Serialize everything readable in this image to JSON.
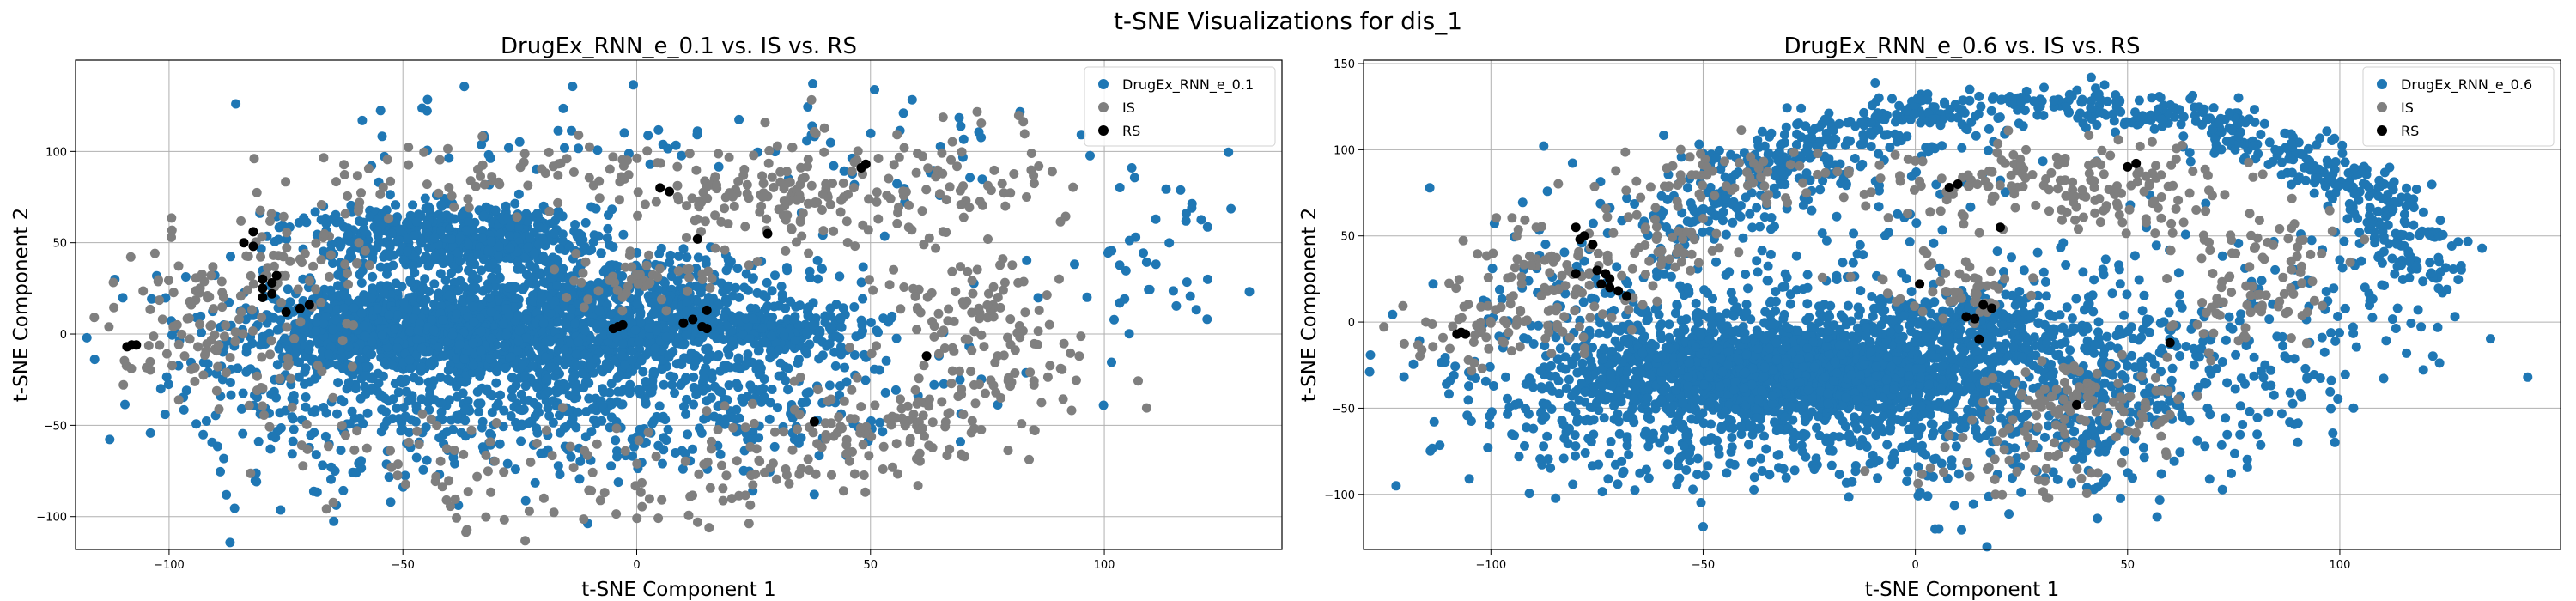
{
  "figure": {
    "suptitle": "t-SNE Visualizations for dis_1"
  },
  "chart_data": [
    {
      "type": "scatter",
      "title": "DrugEx_RNN_e_0.1 vs. IS vs. RS",
      "xlabel": "t-SNE Component 1",
      "ylabel": "t-SNE Component 2",
      "xlim": [
        -120,
        138
      ],
      "ylim": [
        -118,
        150
      ],
      "xticks": [
        -100,
        -50,
        0,
        50,
        100
      ],
      "yticks": [
        -100,
        -50,
        0,
        50,
        100
      ],
      "grid": true,
      "legend_position": "top-right",
      "series": [
        {
          "name": "DrugEx_RNN_e_0.1",
          "color": "#1f77b4",
          "clusters": [
            {
              "cx": -22,
              "cy": 5,
              "sx": 30,
              "sy": 16,
              "n": 1600
            },
            {
              "cx": -55,
              "cy": 2,
              "sx": 12,
              "sy": 10,
              "n": 450
            },
            {
              "cx": -45,
              "cy": 55,
              "sx": 15,
              "sy": 9,
              "n": 320
            },
            {
              "cx": -30,
              "cy": 50,
              "sx": 12,
              "sy": 8,
              "n": 250
            },
            {
              "cx": -25,
              "cy": -35,
              "sx": 35,
              "sy": 20,
              "n": 500
            },
            {
              "cx": 30,
              "cy": 3,
              "sx": 8,
              "sy": 4,
              "n": 120
            },
            {
              "cx": 10,
              "cy": 15,
              "sx": 20,
              "sy": 18,
              "n": 150
            },
            {
              "cx": 20,
              "cy": -40,
              "sx": 25,
              "sy": 20,
              "n": 160
            },
            {
              "cx": 110,
              "cy": 40,
              "sx": 12,
              "sy": 25,
              "n": 45
            },
            {
              "cx": 55,
              "cy": 100,
              "sx": 20,
              "sy": 15,
              "n": 40
            },
            {
              "cx": -20,
              "cy": 110,
              "sx": 25,
              "sy": 12,
              "n": 40
            },
            {
              "cx": -70,
              "cy": -60,
              "sx": 20,
              "sy": 25,
              "n": 60
            }
          ]
        },
        {
          "name": "IS",
          "color": "#7f7f7f",
          "clusters": [
            {
              "cx": 30,
              "cy": 75,
              "sx": 15,
              "sy": 15,
              "n": 130
            },
            {
              "cx": 60,
              "cy": 80,
              "sx": 15,
              "sy": 18,
              "n": 90
            },
            {
              "cx": 70,
              "cy": 15,
              "sx": 10,
              "sy": 15,
              "n": 80
            },
            {
              "cx": 55,
              "cy": -50,
              "sx": 12,
              "sy": 15,
              "n": 110
            },
            {
              "cx": 20,
              "cy": -70,
              "sx": 15,
              "sy": 12,
              "n": 60
            },
            {
              "cx": 85,
              "cy": -20,
              "sx": 10,
              "sy": 15,
              "n": 40
            },
            {
              "cx": -88,
              "cy": -10,
              "sx": 12,
              "sy": 20,
              "n": 90
            },
            {
              "cx": -75,
              "cy": 45,
              "sx": 10,
              "sy": 20,
              "n": 60
            },
            {
              "cx": -30,
              "cy": 85,
              "sx": 20,
              "sy": 10,
              "n": 70
            },
            {
              "cx": 0,
              "cy": 30,
              "sx": 10,
              "sy": 8,
              "n": 50
            },
            {
              "cx": -40,
              "cy": -70,
              "sx": 20,
              "sy": 15,
              "n": 50
            },
            {
              "cx": -10,
              "cy": -95,
              "sx": 25,
              "sy": 8,
              "n": 30
            },
            {
              "cx": -95,
              "cy": 30,
              "sx": 8,
              "sy": 10,
              "n": 30
            }
          ]
        },
        {
          "name": "RS",
          "color": "#000000",
          "points": [
            [
              -109,
              -7
            ],
            [
              -107,
              -6
            ],
            [
              -108,
              -6
            ],
            [
              -80,
              25
            ],
            [
              -78,
              22
            ],
            [
              -80,
              20
            ],
            [
              -77,
              32
            ],
            [
              -82,
              48
            ],
            [
              -82,
              56
            ],
            [
              -84,
              50
            ],
            [
              -70,
              16
            ],
            [
              -72,
              14
            ],
            [
              -75,
              12
            ],
            [
              -5,
              3
            ],
            [
              -3,
              5
            ],
            [
              -4,
              4
            ],
            [
              5,
              80
            ],
            [
              7,
              78
            ],
            [
              13,
              52
            ],
            [
              15,
              13
            ],
            [
              12,
              8
            ],
            [
              10,
              6
            ],
            [
              14,
              4
            ],
            [
              15,
              3
            ],
            [
              28,
              55
            ],
            [
              48,
              91
            ],
            [
              49,
              93
            ],
            [
              62,
              -12
            ],
            [
              38,
              -48
            ],
            [
              -80,
              30
            ],
            [
              -78,
              28
            ]
          ]
        }
      ]
    },
    {
      "type": "scatter",
      "title": "DrugEx_RNN_e_0.6 vs. IS vs. RS",
      "xlabel": "t-SNE Component 1",
      "ylabel": "t-SNE Component 2",
      "xlim": [
        -130,
        152
      ],
      "ylim": [
        -132,
        152
      ],
      "xticks": [
        -100,
        -50,
        0,
        50,
        100
      ],
      "yticks": [
        -100,
        -50,
        0,
        50,
        100,
        150
      ],
      "grid": true,
      "legend_position": "top-right",
      "series": [
        {
          "name": "DrugEx_RNN_e_0.6",
          "color": "#1f77b4",
          "clusters": [
            {
              "cx": -30,
              "cy": -30,
              "sx": 22,
              "sy": 12,
              "n": 1500
            },
            {
              "cx": -10,
              "cy": -25,
              "sx": 40,
              "sy": 25,
              "n": 900
            },
            {
              "cx": 10,
              "cy": -5,
              "sx": 20,
              "sy": 15,
              "n": 250
            },
            {
              "cx": -60,
              "cy": -50,
              "sx": 25,
              "sy": 25,
              "n": 300
            },
            {
              "cx": 20,
              "cy": -70,
              "sx": 30,
              "sy": 20,
              "n": 200
            },
            {
              "cx": -70,
              "cy": 10,
              "sx": 20,
              "sy": 30,
              "n": 150
            },
            {
              "cx": -20,
              "cy": 80,
              "sx": 30,
              "sy": 20,
              "n": 120
            },
            {
              "cx": 50,
              "cy": -20,
              "sx": 20,
              "sy": 30,
              "n": 150
            },
            {
              "cx": 100,
              "cy": 0,
              "sx": 15,
              "sy": 30,
              "n": 80
            }
          ],
          "arc": {
            "cx": 30,
            "cy": 15,
            "rx": 90,
            "ry": 110,
            "a0": 0.05,
            "a1": 2.8,
            "n": 700,
            "jitter": 7
          }
        },
        {
          "name": "IS",
          "color": "#7f7f7f",
          "clusters": [
            {
              "cx": -85,
              "cy": 25,
              "sx": 12,
              "sy": 20,
              "n": 90
            },
            {
              "cx": -100,
              "cy": -5,
              "sx": 10,
              "sy": 15,
              "n": 50
            },
            {
              "cx": -45,
              "cy": 85,
              "sx": 15,
              "sy": 12,
              "n": 70
            },
            {
              "cx": 20,
              "cy": 80,
              "sx": 15,
              "sy": 12,
              "n": 90
            },
            {
              "cx": 55,
              "cy": 75,
              "sx": 15,
              "sy": 15,
              "n": 90
            },
            {
              "cx": 40,
              "cy": -45,
              "sx": 12,
              "sy": 12,
              "n": 100
            },
            {
              "cx": 75,
              "cy": 10,
              "sx": 10,
              "sy": 15,
              "n": 60
            },
            {
              "cx": 10,
              "cy": 20,
              "sx": 10,
              "sy": 10,
              "n": 50
            },
            {
              "cx": 25,
              "cy": -80,
              "sx": 15,
              "sy": 12,
              "n": 50
            },
            {
              "cx": -60,
              "cy": 45,
              "sx": 10,
              "sy": 10,
              "n": 40
            },
            {
              "cx": 85,
              "cy": 45,
              "sx": 10,
              "sy": 10,
              "n": 30
            }
          ]
        },
        {
          "name": "RS",
          "color": "#000000",
          "points": [
            [
              -108,
              -7
            ],
            [
              -106,
              -7
            ],
            [
              -107,
              -6
            ],
            [
              -80,
              55
            ],
            [
              -78,
              50
            ],
            [
              -76,
              45
            ],
            [
              -79,
              48
            ],
            [
              -75,
              30
            ],
            [
              -73,
              28
            ],
            [
              -72,
              25
            ],
            [
              -74,
              22
            ],
            [
              -70,
              18
            ],
            [
              -72,
              20
            ],
            [
              -68,
              15
            ],
            [
              1,
              22
            ],
            [
              10,
              80
            ],
            [
              8,
              78
            ],
            [
              12,
              3
            ],
            [
              14,
              2
            ],
            [
              16,
              10
            ],
            [
              18,
              8
            ],
            [
              20,
              55
            ],
            [
              15,
              -10
            ],
            [
              50,
              90
            ],
            [
              52,
              92
            ],
            [
              60,
              -12
            ],
            [
              38,
              -48
            ],
            [
              -80,
              28
            ]
          ]
        }
      ]
    }
  ]
}
